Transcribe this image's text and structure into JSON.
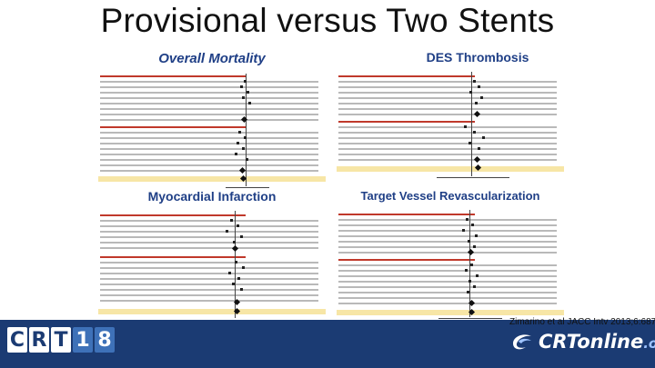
{
  "slide": {
    "title": "Provisional versus Two Stents",
    "citation": "Zimarino et al JACC Intv 2013;6:687"
  },
  "panels": {
    "overall_mortality": {
      "title": "Overall Mortality"
    },
    "des_thrombosis": {
      "title": "DES Thrombosis"
    },
    "myocardial_infarction": {
      "title": "Myocardial Infarction"
    },
    "target_vessel_revascularization": {
      "title": "Target Vessel Revascularization"
    }
  },
  "logos": {
    "left_letters": [
      "C",
      "R",
      "T",
      "1",
      "8"
    ],
    "right_text": "CRTonline",
    "right_suffix": ".org"
  },
  "colors": {
    "title_blue": "#1f3f86",
    "footer_navy": "#1b3b73",
    "highlight_yellow": "#f7e6a6",
    "section_red": "#c0392b"
  }
}
